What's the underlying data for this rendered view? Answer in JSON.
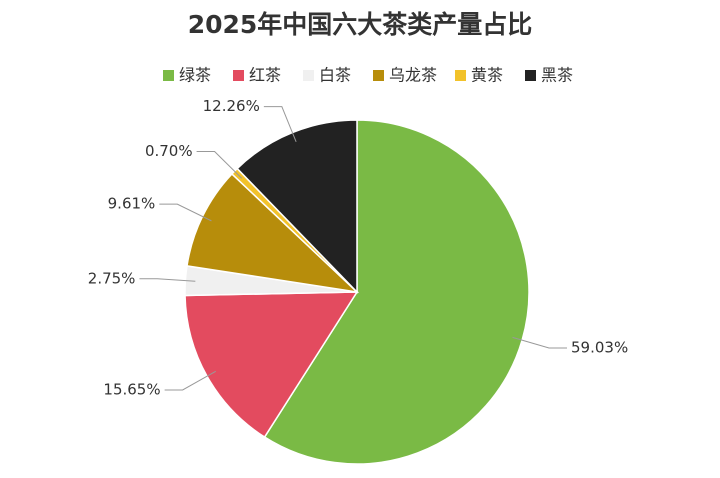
{
  "chart_data": {
    "type": "pie",
    "title": "2025年中国六大茶类产量占比",
    "categories": [
      "绿茶",
      "红茶",
      "白茶",
      "乌龙茶",
      "黄茶",
      "黑茶"
    ],
    "values": [
      59.03,
      15.65,
      2.75,
      9.61,
      0.7,
      12.26
    ],
    "value_labels": [
      "59.03%",
      "15.65%",
      "2.75%",
      "9.61%",
      "0.70%",
      "12.26%"
    ],
    "colors": [
      "#7aba45",
      "#e34b5f",
      "#f0f0f0",
      "#b78d0b",
      "#f2c22a",
      "#222222"
    ],
    "legend": "top"
  }
}
